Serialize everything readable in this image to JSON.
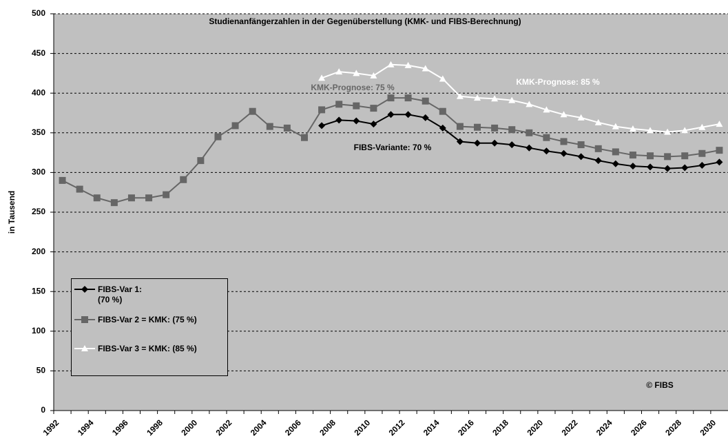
{
  "chart_data": {
    "type": "line",
    "title": "Studienanfängerzahlen in der Gegenüberstellung (KMK- und FIBS-Berechnung)",
    "y_label": "in Tausend",
    "categories": [
      "1992",
      null,
      "1994",
      null,
      "1996",
      null,
      "1998",
      null,
      "2000",
      null,
      "2002",
      null,
      "2004",
      null,
      "2006",
      null,
      "2008",
      null,
      "2010",
      null,
      "2012",
      null,
      "2014",
      null,
      "2016",
      null,
      "2018",
      null,
      "2020",
      null,
      "2022",
      null,
      "2024",
      null,
      "2026",
      null,
      "2028",
      null,
      "2030"
    ],
    "series": [
      {
        "name": "FIBS-Var 1:\n(70 %)",
        "color": "#000000",
        "marker": "diamond",
        "values": [
          null,
          null,
          null,
          null,
          null,
          null,
          null,
          null,
          null,
          null,
          null,
          null,
          null,
          null,
          null,
          359,
          366,
          365,
          361,
          373,
          373,
          369,
          356,
          339,
          337,
          337,
          335,
          331,
          327,
          324,
          320,
          315,
          311,
          308,
          307,
          305,
          306,
          309,
          313
        ]
      },
      {
        "name": "FIBS-Var 2 = KMK: (75 %)",
        "color": "#666666",
        "marker": "square",
        "values": [
          290,
          279,
          268,
          262,
          268,
          268,
          272,
          291,
          315,
          345,
          359,
          377,
          358,
          356,
          344,
          379,
          386,
          384,
          381,
          394,
          394,
          390,
          377,
          358,
          357,
          356,
          354,
          350,
          344,
          339,
          335,
          330,
          326,
          322,
          321,
          320,
          321,
          324,
          328
        ]
      },
      {
        "name": "FIBS-Var 3 = KMK: (85 %)",
        "color": "#ffffff",
        "marker": "triangle",
        "values": [
          null,
          null,
          null,
          null,
          null,
          null,
          null,
          null,
          null,
          null,
          null,
          null,
          null,
          null,
          null,
          419,
          427,
          425,
          422,
          436,
          435,
          431,
          418,
          396,
          394,
          393,
          391,
          386,
          379,
          373,
          369,
          363,
          358,
          355,
          353,
          351,
          353,
          357,
          361
        ]
      }
    ],
    "annotations": [
      "KMK-Prognose: 75 %",
      "KMK-Prognose: 85 %",
      "FIBS-Variante: 70 %",
      "© FIBS"
    ],
    "ylim": [
      0,
      500
    ],
    "yticks": [
      0,
      50,
      100,
      150,
      200,
      250,
      300,
      350,
      400,
      450,
      500
    ],
    "grid": true,
    "legend": "lower left",
    "background": "#c0c0c0"
  }
}
